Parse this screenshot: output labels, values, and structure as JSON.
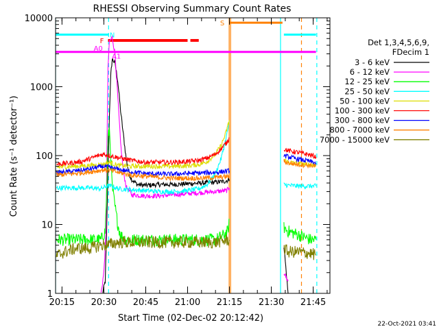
{
  "chart_data": {
    "type": "line",
    "title": "RHESSI Observing Summary Count Rates",
    "xlabel": "Start Time (02-Dec-02 20:12:42)",
    "ylabel": "Count Rate (s⁻¹ detector⁻¹)",
    "y_scale": "log",
    "ylim": [
      1,
      10000
    ],
    "xlim_minutes_after_20h": [
      12.7,
      111
    ],
    "x_ticks": [
      {
        "label": "20:15",
        "t": 15
      },
      {
        "label": "20:30",
        "t": 30
      },
      {
        "label": "20:45",
        "t": 45
      },
      {
        "label": "21:00",
        "t": 60
      },
      {
        "label": "21:15",
        "t": 75
      },
      {
        "label": "21:30",
        "t": 90
      },
      {
        "label": "21:45",
        "t": 105
      }
    ],
    "y_ticks": [
      {
        "label": "1",
        "v": 1
      },
      {
        "label": "10",
        "v": 10
      },
      {
        "label": "100",
        "v": 100
      },
      {
        "label": "1000",
        "v": 1000
      },
      {
        "label": "10000",
        "v": 10000
      }
    ],
    "legend": {
      "placement": "right",
      "header": [
        "Det 1,3,4,5,6,9,",
        "FDecim 1"
      ]
    },
    "series": [
      {
        "name": "3 - 6 keV",
        "color": "#000000",
        "points": [
          [
            29.5,
            1
          ],
          [
            30.5,
            1.5
          ],
          [
            31,
            8
          ],
          [
            31.5,
            60
          ],
          [
            32,
            400
          ],
          [
            32.5,
            1500
          ],
          [
            33,
            2500
          ],
          [
            34,
            2200
          ],
          [
            35,
            1200
          ],
          [
            36,
            450
          ],
          [
            37,
            200
          ],
          [
            38,
            90
          ],
          [
            39,
            55
          ],
          [
            40,
            45
          ],
          [
            42,
            38
          ],
          [
            45,
            37
          ],
          [
            50,
            38
          ],
          [
            55,
            38
          ],
          [
            60,
            39
          ],
          [
            65,
            40
          ],
          [
            70,
            41
          ],
          [
            73,
            42
          ],
          [
            74.5,
            44
          ],
          [
            75,
            45
          ],
          [
            94,
            null
          ],
          [
            94.5,
            5
          ],
          [
            96,
            1
          ],
          [
            108,
            null
          ]
        ]
      },
      {
        "name": "6 - 12 keV",
        "color": "#ff00ff",
        "points": [
          [
            29,
            1
          ],
          [
            30,
            2
          ],
          [
            30.8,
            8
          ],
          [
            31,
            50
          ],
          [
            31.5,
            2000
          ],
          [
            32,
            4500
          ],
          [
            33,
            5200
          ],
          [
            34,
            3000
          ],
          [
            35,
            700
          ],
          [
            36,
            150
          ],
          [
            37,
            60
          ],
          [
            38,
            35
          ],
          [
            40,
            27
          ],
          [
            45,
            26
          ],
          [
            50,
            26
          ],
          [
            55,
            27
          ],
          [
            60,
            28
          ],
          [
            65,
            29
          ],
          [
            70,
            30
          ],
          [
            74,
            31
          ],
          [
            75,
            34
          ],
          [
            94,
            null
          ],
          [
            94.5,
            2
          ],
          [
            96,
            1.5
          ],
          [
            108,
            null
          ]
        ]
      },
      {
        "name": "12 - 25 keV",
        "color": "#00ff00",
        "points": [
          [
            13,
            6
          ],
          [
            16,
            6
          ],
          [
            20,
            6
          ],
          [
            25,
            6
          ],
          [
            29,
            6
          ],
          [
            30.5,
            8
          ],
          [
            31,
            30
          ],
          [
            31.5,
            180
          ],
          [
            32,
            240
          ],
          [
            32.5,
            100
          ],
          [
            33,
            35
          ],
          [
            34,
            18
          ],
          [
            35,
            10
          ],
          [
            36,
            7
          ],
          [
            38,
            6
          ],
          [
            45,
            6
          ],
          [
            55,
            6
          ],
          [
            65,
            6
          ],
          [
            70,
            6
          ],
          [
            73,
            7
          ],
          [
            74.5,
            8
          ],
          [
            75,
            12
          ],
          [
            94,
            null
          ],
          [
            94.5,
            9
          ],
          [
            96,
            8
          ],
          [
            100,
            7
          ],
          [
            104,
            6
          ],
          [
            106,
            6
          ]
        ]
      },
      {
        "name": "25 - 50 keV",
        "color": "#00ffff",
        "points": [
          [
            13,
            34
          ],
          [
            20,
            34
          ],
          [
            25,
            34
          ],
          [
            29,
            33
          ],
          [
            31,
            36
          ],
          [
            33,
            36
          ],
          [
            35,
            33
          ],
          [
            40,
            32
          ],
          [
            45,
            31
          ],
          [
            50,
            30
          ],
          [
            55,
            30
          ],
          [
            60,
            31
          ],
          [
            64,
            33
          ],
          [
            67,
            38
          ],
          [
            70,
            55
          ],
          [
            72,
            90
          ],
          [
            73.5,
            160
          ],
          [
            75,
            310
          ],
          [
            94,
            null
          ],
          [
            94.5,
            38
          ],
          [
            96,
            37
          ],
          [
            100,
            36
          ],
          [
            104,
            36
          ],
          [
            106,
            36
          ]
        ]
      },
      {
        "name": "50 - 100 keV",
        "color": "#dddd00",
        "points": [
          [
            13,
            68
          ],
          [
            20,
            70
          ],
          [
            25,
            72
          ],
          [
            30,
            75
          ],
          [
            32,
            80
          ],
          [
            35,
            72
          ],
          [
            40,
            70
          ],
          [
            45,
            70
          ],
          [
            50,
            70
          ],
          [
            55,
            70
          ],
          [
            60,
            71
          ],
          [
            64,
            74
          ],
          [
            67,
            82
          ],
          [
            70,
            105
          ],
          [
            72,
            140
          ],
          [
            73.5,
            200
          ],
          [
            75,
            330
          ],
          [
            94,
            null
          ],
          [
            94.5,
            88
          ],
          [
            96,
            80
          ],
          [
            100,
            76
          ],
          [
            104,
            74
          ],
          [
            106,
            73
          ]
        ]
      },
      {
        "name": "100 - 300 keV",
        "color": "#ff0000",
        "points": [
          [
            13,
            75
          ],
          [
            18,
            78
          ],
          [
            22,
            82
          ],
          [
            25,
            90
          ],
          [
            28,
            100
          ],
          [
            30,
            105
          ],
          [
            32,
            100
          ],
          [
            34,
            96
          ],
          [
            36,
            92
          ],
          [
            40,
            85
          ],
          [
            45,
            80
          ],
          [
            50,
            80
          ],
          [
            55,
            80
          ],
          [
            60,
            82
          ],
          [
            64,
            85
          ],
          [
            67,
            92
          ],
          [
            70,
            105
          ],
          [
            72,
            125
          ],
          [
            74,
            155
          ],
          [
            75,
            180
          ],
          [
            94,
            null
          ],
          [
            94.5,
            125
          ],
          [
            96,
            118
          ],
          [
            100,
            110
          ],
          [
            104,
            102
          ],
          [
            106,
            96
          ]
        ]
      },
      {
        "name": "300 - 800 keV",
        "color": "#0000ff",
        "points": [
          [
            13,
            56
          ],
          [
            20,
            60
          ],
          [
            25,
            64
          ],
          [
            28,
            68
          ],
          [
            30,
            70
          ],
          [
            33,
            66
          ],
          [
            36,
            62
          ],
          [
            40,
            58
          ],
          [
            45,
            55
          ],
          [
            50,
            54
          ],
          [
            55,
            54
          ],
          [
            60,
            55
          ],
          [
            65,
            56
          ],
          [
            70,
            57
          ],
          [
            75,
            60
          ],
          [
            94,
            null
          ],
          [
            94.5,
            100
          ],
          [
            96,
            96
          ],
          [
            100,
            88
          ],
          [
            104,
            82
          ],
          [
            106,
            78
          ]
        ]
      },
      {
        "name": "800 - 7000 keV",
        "color": "#ff8000",
        "points": [
          [
            13,
            52
          ],
          [
            20,
            55
          ],
          [
            25,
            58
          ],
          [
            30,
            62
          ],
          [
            33,
            60
          ],
          [
            36,
            56
          ],
          [
            40,
            52
          ],
          [
            45,
            50
          ],
          [
            50,
            48
          ],
          [
            55,
            47
          ],
          [
            60,
            47
          ],
          [
            65,
            47
          ],
          [
            70,
            48
          ],
          [
            75,
            50
          ],
          [
            94,
            null
          ],
          [
            94.5,
            82
          ],
          [
            96,
            78
          ],
          [
            100,
            74
          ],
          [
            104,
            72
          ],
          [
            106,
            70
          ]
        ]
      },
      {
        "name": "7000 - 15000 keV",
        "color": "#808000",
        "points": [
          [
            13,
            3.5
          ],
          [
            16,
            4
          ],
          [
            20,
            4.5
          ],
          [
            25,
            4.5
          ],
          [
            29,
            5
          ],
          [
            31,
            5
          ],
          [
            35,
            5.5
          ],
          [
            40,
            5.5
          ],
          [
            45,
            5.5
          ],
          [
            50,
            5.5
          ],
          [
            55,
            5.5
          ],
          [
            60,
            5.5
          ],
          [
            65,
            5.5
          ],
          [
            70,
            5.5
          ],
          [
            75,
            6
          ],
          [
            94,
            null
          ],
          [
            94.5,
            4.5
          ],
          [
            96,
            4
          ],
          [
            100,
            4
          ],
          [
            104,
            3.8
          ],
          [
            106,
            3.6
          ]
        ]
      }
    ],
    "flag_bars": [
      {
        "label": "F",
        "color": "#ff0000",
        "segments": [
          [
            31.5,
            60
          ],
          [
            61,
            64
          ]
        ],
        "value": 4700
      },
      {
        "label": "N",
        "color": "#00ffff",
        "segments": [
          [
            12.7,
            31.7
          ],
          [
            94.5,
            106
          ]
        ],
        "value": 5700
      },
      {
        "label": "A0",
        "color": "#ff00ff",
        "segments": [
          [
            12.7,
            106
          ]
        ],
        "value": 3200
      },
      {
        "label": "A1",
        "color": "#ff00ff",
        "segments": [],
        "value": 3200
      },
      {
        "label": "S",
        "color": "#ff8000",
        "segments": [
          [
            75,
            94
          ]
        ],
        "value": 8500
      }
    ],
    "vertical_markers": [
      {
        "t": 12.7,
        "color": "#00ffff",
        "style": "solid"
      },
      {
        "t": 31.7,
        "color": "#00ffff",
        "style": "dashed"
      },
      {
        "t": 74.9,
        "color": "#ff8000",
        "style": "solid"
      },
      {
        "t": 75.4,
        "color": "#ff8000",
        "style": "solid"
      },
      {
        "t": 93.3,
        "color": "#00ffff",
        "style": "solid"
      },
      {
        "t": 100.8,
        "color": "#ff8000",
        "style": "dashed"
      },
      {
        "t": 106.3,
        "color": "#00ffff",
        "style": "dashed"
      }
    ],
    "footer_date": "22-Oct-2021 03:41"
  }
}
